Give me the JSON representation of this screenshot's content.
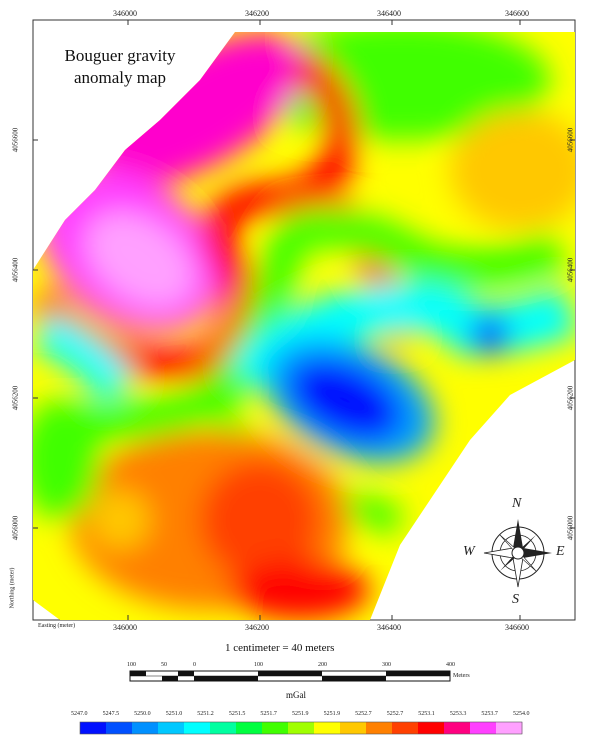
{
  "title": {
    "line1": "Bouguer gravity",
    "line2": "anomaly map"
  },
  "top_ticks": [
    "346000",
    "346200",
    "346400",
    "346600"
  ],
  "bottom_ticks": [
    "346000",
    "346200",
    "346400",
    "346600"
  ],
  "left_ticks": [
    "4056600",
    "4056400",
    "4056200",
    "4056000"
  ],
  "right_ticks": [
    "4056600",
    "4056400",
    "4056200",
    "4056000"
  ],
  "easting_label": "Easting (meter)",
  "northing_label": "Northing (meter)",
  "scale_text": "1 centimeter = 40 meters",
  "scale_bar": {
    "labels": [
      "100",
      "50",
      "0",
      "100",
      "200",
      "300",
      "400"
    ],
    "unit": "Meters"
  },
  "legend": {
    "title": "mGal",
    "labels": [
      "5247.0",
      "5247.5",
      "5250.0",
      "5251.0",
      "5251.2",
      "5251.5",
      "5251.7",
      "5251.9",
      "5251.9",
      "5252.7",
      "5252.7",
      "5253.1",
      "5253.3",
      "5253.7",
      "5254.0"
    ],
    "colors": [
      "#0010ff",
      "#0050ff",
      "#0090ff",
      "#00c8ff",
      "#00ffff",
      "#00ffa0",
      "#00ff40",
      "#40ff00",
      "#a0ff00",
      "#ffff00",
      "#ffc800",
      "#ff8000",
      "#ff4000",
      "#ff0000",
      "#ff0080",
      "#ff40ff",
      "#ffa0ff"
    ]
  },
  "compass": {
    "north": "N",
    "south": "S",
    "east": "E",
    "west": "W"
  }
}
